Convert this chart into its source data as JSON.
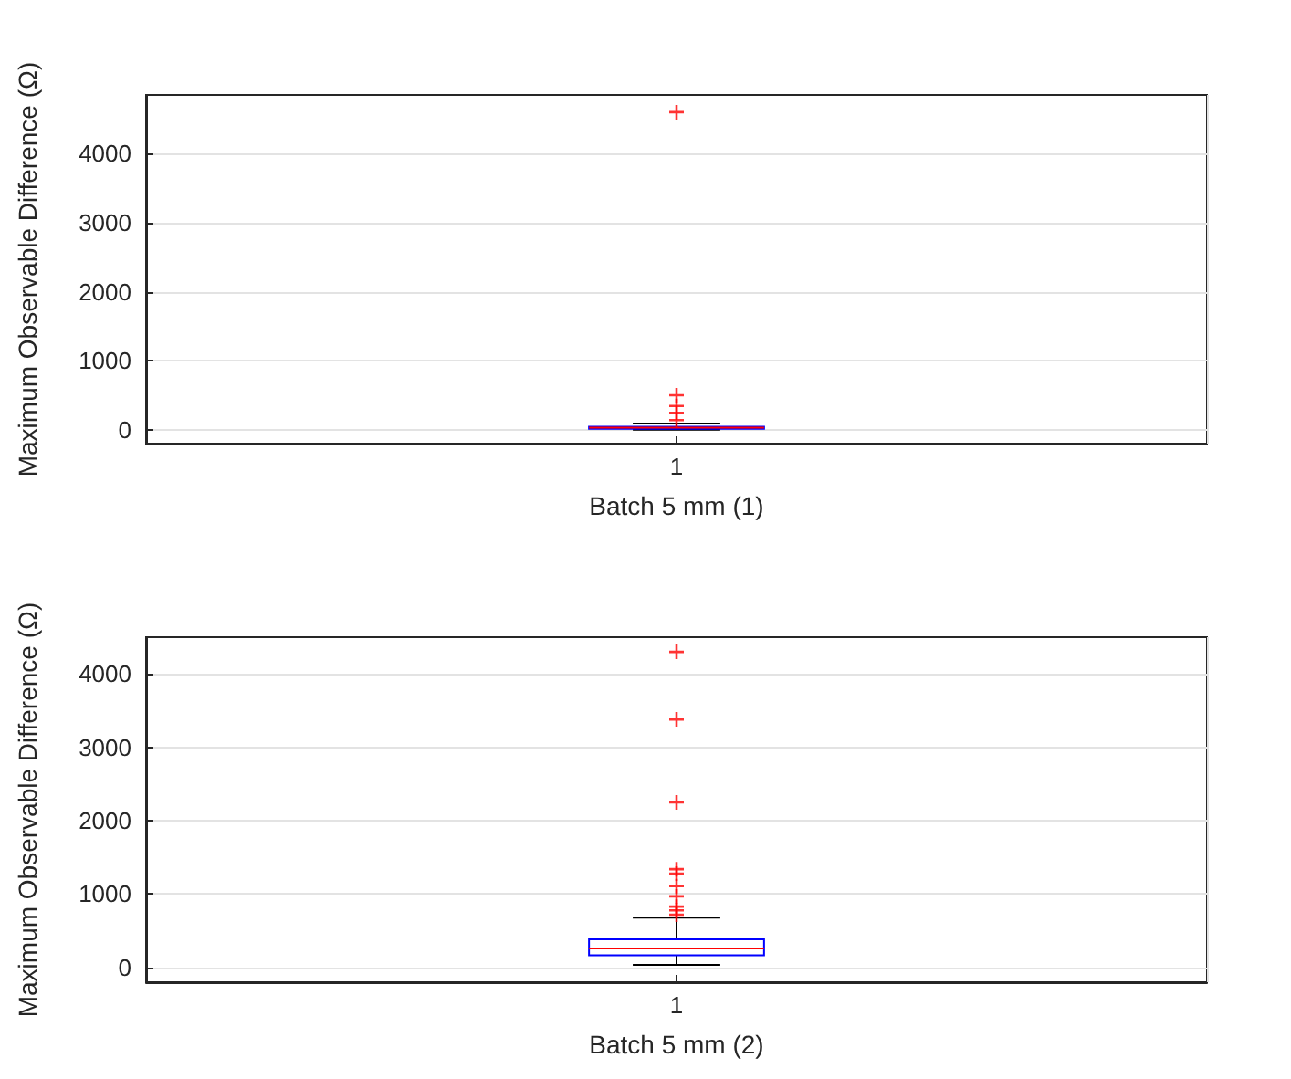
{
  "chart_data": [
    {
      "type": "box",
      "categories": [
        "1"
      ],
      "xlabel": "Batch 5 mm (1)",
      "ylabel": "Maximum Observable Difference (Ω)",
      "ylim": [
        -200,
        4850
      ],
      "yticks": [
        0,
        1000,
        2000,
        3000,
        4000
      ],
      "grid": true,
      "marker": "cross",
      "boxes": [
        {
          "low": 0,
          "q1": 15,
          "median": 30,
          "q3": 45,
          "high": 90,
          "outliers": [
            4600,
            500,
            345,
            245,
            140
          ]
        }
      ]
    },
    {
      "type": "box",
      "categories": [
        "1"
      ],
      "xlabel": "Batch 5 mm (2)",
      "ylabel": "Maximum Observable Difference (Ω)",
      "ylim": [
        -200,
        4500
      ],
      "yticks": [
        0,
        1000,
        2000,
        3000,
        4000
      ],
      "grid": true,
      "marker": "cross",
      "boxes": [
        {
          "low": 35,
          "q1": 167,
          "median": 259,
          "q3": 383,
          "high": 680,
          "outliers": [
            4300,
            3380,
            2250,
            1340,
            1280,
            1110,
            970,
            830,
            780,
            720
          ]
        }
      ]
    }
  ]
}
